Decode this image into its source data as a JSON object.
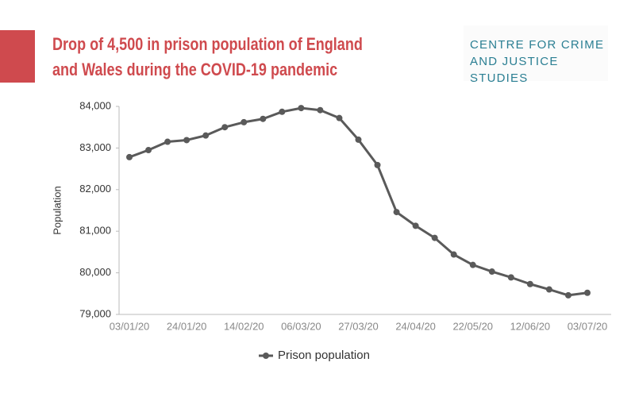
{
  "title": "Drop of 4,500 in prison population of England and Wales during the COVID-19 pandemic",
  "logo": "CENTRE FOR CRIME AND JUSTICE STUDIES",
  "chart_data": {
    "type": "line",
    "y_label": "Population",
    "categories": [
      "03/01/20",
      null,
      null,
      "24/01/20",
      null,
      null,
      "14/02/20",
      null,
      null,
      "06/03/20",
      null,
      null,
      "27/03/20",
      null,
      null,
      "24/04/20",
      null,
      null,
      "22/05/20",
      null,
      null,
      "12/06/20",
      null,
      null,
      "03/07/20"
    ],
    "series": [
      {
        "name": "Prison population",
        "color": "#5a5a5a",
        "values": [
          82780,
          82950,
          83150,
          83190,
          83300,
          83500,
          83620,
          83700,
          83870,
          83960,
          83910,
          83720,
          83200,
          82590,
          81460,
          81130,
          80840,
          80440,
          80190,
          80030,
          79890,
          79730,
          79600,
          79460,
          79520
        ]
      }
    ],
    "ylim": [
      79000,
      84000
    ],
    "yticks": [
      {
        "value": 79000,
        "label": "79,000"
      },
      {
        "value": 80000,
        "label": "80,000"
      },
      {
        "value": 81000,
        "label": "81,000"
      },
      {
        "value": 82000,
        "label": "82,000"
      },
      {
        "value": 83000,
        "label": "83,000"
      },
      {
        "value": 84000,
        "label": "84,000"
      }
    ],
    "legend": "bottom"
  }
}
